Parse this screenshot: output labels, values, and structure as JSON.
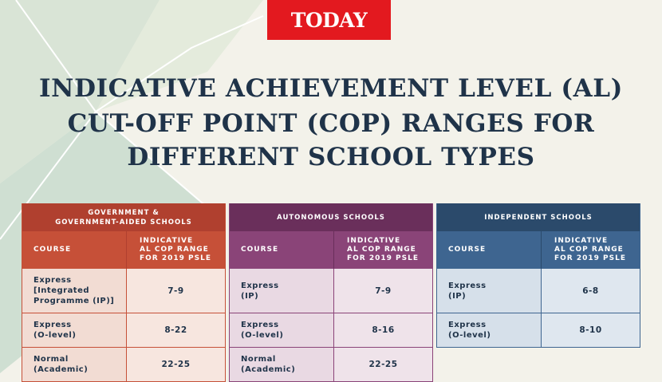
{
  "logo": "TODAY",
  "title": [
    "INDICATIVE ACHIEVEMENT LEVEL (AL)",
    "CUT-OFF POINT (COP) RANGES FOR",
    "DIFFERENT SCHOOL TYPES"
  ],
  "tables": [
    {
      "header": "GOVERNMENT &\nGOVERNMENT-AIDED SCHOOLS",
      "columns": [
        "COURSE",
        "INDICATIVE\nAL COP RANGE\nFOR 2019 PSLE"
      ],
      "rows": [
        [
          "Express\n[Integrated\nProgramme (IP)]",
          "7-9"
        ],
        [
          "Express\n(O-level)",
          "8-22"
        ],
        [
          "Normal\n(Academic)",
          "22-25"
        ]
      ]
    },
    {
      "header": "AUTONOMOUS SCHOOLS",
      "columns": [
        "COURSE",
        "INDICATIVE\nAL COP RANGE\nFOR 2019 PSLE"
      ],
      "rows": [
        [
          "Express\n(IP)",
          "7-9"
        ],
        [
          "Express\n(O-level)",
          "8-16"
        ],
        [
          "Normal\n(Academic)",
          "22-25"
        ]
      ]
    },
    {
      "header": "INDEPENDENT SCHOOLS",
      "columns": [
        "COURSE",
        "INDICATIVE\nAL COP RANGE\nFOR 2019 PSLE"
      ],
      "rows": [
        [
          "Express\n(IP)",
          "6-8"
        ],
        [
          "Express\n(O-level)",
          "8-10"
        ]
      ]
    }
  ]
}
